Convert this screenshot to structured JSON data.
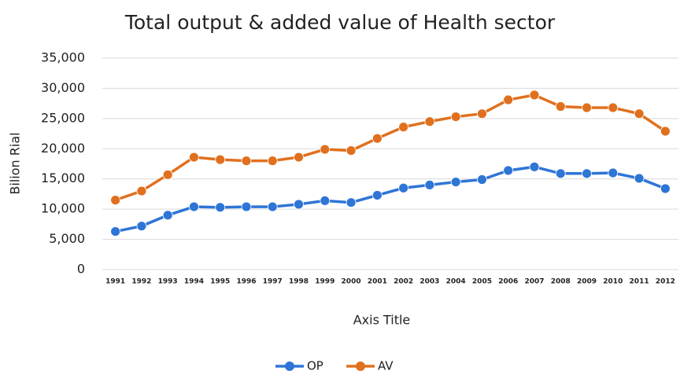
{
  "chart_data": {
    "type": "line",
    "title": "Total output & added value of Health sector",
    "x_label": "Axis Title",
    "y_label": "Bilion Rial",
    "categories": [
      "1991",
      "1992",
      "1993",
      "1994",
      "1995",
      "1996",
      "1997",
      "1998",
      "1999",
      "2000",
      "2001",
      "2002",
      "2003",
      "2004",
      "2005",
      "2006",
      "2007",
      "2008",
      "2009",
      "2010",
      "2011",
      "2012"
    ],
    "series": [
      {
        "name": "OP",
        "color": "#2e75d6",
        "values": [
          6300,
          7200,
          9000,
          10400,
          10300,
          10400,
          10400,
          10800,
          11400,
          11100,
          12300,
          13500,
          14000,
          14500,
          14900,
          16400,
          17000,
          15900,
          15900,
          16000,
          15100,
          13400
        ]
      },
      {
        "name": "AV",
        "color": "#e0701e",
        "values": [
          11500,
          13000,
          15700,
          18600,
          18200,
          18000,
          18000,
          18600,
          19900,
          19700,
          21700,
          23600,
          24500,
          25300,
          25800,
          28100,
          28900,
          27000,
          26800,
          26800,
          25800,
          22900
        ]
      }
    ],
    "ylim": [
      0,
      35000
    ],
    "yticks": [
      0,
      {
        "value": 5000,
        "label": "5,000"
      },
      {
        "value": 10000,
        "label": "10,000"
      },
      {
        "value": 15000,
        "label": "15,000"
      },
      {
        "value": 20000,
        "label": "20,000"
      },
      {
        "value": 25000,
        "label": "25,000"
      },
      {
        "value": 30000,
        "label": "30,000"
      },
      {
        "value": 35000,
        "label": "35,000"
      }
    ],
    "grid": true,
    "legend": "bottom"
  }
}
